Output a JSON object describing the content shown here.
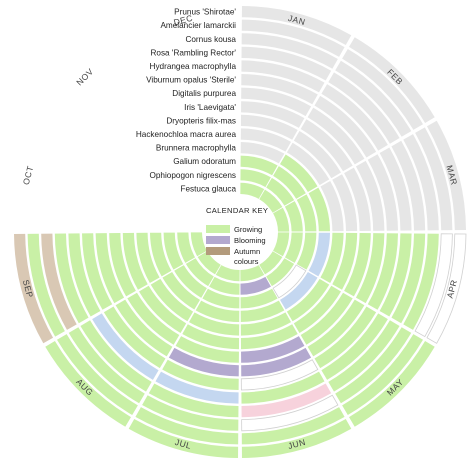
{
  "chart_data": {
    "type": "radial-calendar",
    "months": [
      "JAN",
      "FEB",
      "MAR",
      "APR",
      "MAY",
      "JUN",
      "JUL",
      "AUG",
      "SEP",
      "OCT",
      "NOV",
      "DEC"
    ],
    "key": {
      "title": "CALENDAR KEY",
      "items": [
        {
          "label": "Growing",
          "color": "#c9f0a6"
        },
        {
          "label": "Blooming",
          "color": "#b3a9cf"
        },
        {
          "label": "Autumn\ncolours",
          "color": "#b39b7c"
        }
      ]
    },
    "colors": {
      "dormant": "#e6e6e6",
      "growing": "#c9f0a6",
      "blooming_purple": "#b3a9cf",
      "blooming_white": "#ffffff",
      "blooming_blue": "#c4d7f0",
      "blooming_pink": "#f7d2dc",
      "autumn": "#b39b7c",
      "autumn_light": "#d9c8b4",
      "outline": "#d0d0d0"
    },
    "plants": [
      {
        "name": "Prunus 'Shirotae'",
        "months": [
          "dormant",
          "dormant",
          "dormant",
          "blooming_white",
          "growing",
          "growing",
          "growing",
          "growing",
          "autumn_light",
          "autumn",
          "dormant",
          "dormant"
        ]
      },
      {
        "name": "Amelancier lamarckii",
        "months": [
          "dormant",
          "dormant",
          "dormant",
          "blooming_white",
          "growing",
          "growing",
          "growing",
          "growing",
          "growing",
          "autumn",
          "dormant",
          "dormant"
        ]
      },
      {
        "name": "Cornus kousa",
        "months": [
          "dormant",
          "dormant",
          "dormant",
          "growing",
          "growing",
          "blooming_white",
          "growing",
          "growing",
          "autumn_light",
          "autumn",
          "dormant",
          "dormant"
        ]
      },
      {
        "name": "Rosa 'Rambling Rector'",
        "months": [
          "dormant",
          "dormant",
          "dormant",
          "growing",
          "growing",
          "blooming_pink",
          "growing",
          "growing",
          "growing",
          "dormant",
          "dormant",
          "dormant"
        ]
      },
      {
        "name": "Hydrangea macrophylla",
        "months": [
          "dormant",
          "dormant",
          "dormant",
          "growing",
          "growing",
          "growing",
          "blooming_blue",
          "blooming_blue",
          "growing",
          "dormant",
          "autumn",
          "dormant"
        ]
      },
      {
        "name": "Viburnum opalus 'Sterile'",
        "months": [
          "dormant",
          "dormant",
          "dormant",
          "growing",
          "growing",
          "blooming_white",
          "growing",
          "growing",
          "growing",
          "autumn",
          "dormant",
          "dormant"
        ]
      },
      {
        "name": "Digitalis purpurea",
        "months": [
          "dormant",
          "dormant",
          "dormant",
          "growing",
          "growing",
          "blooming_purple",
          "blooming_purple",
          "growing",
          "growing",
          "growing",
          "dormant",
          "dormant"
        ]
      },
      {
        "name": "Iris 'Laevigata'",
        "months": [
          "dormant",
          "dormant",
          "dormant",
          "growing",
          "growing",
          "blooming_purple",
          "growing",
          "growing",
          "growing",
          "dormant",
          "dormant",
          "dormant"
        ]
      },
      {
        "name": "Dryopteris filix-mas",
        "months": [
          "dormant",
          "dormant",
          "dormant",
          "growing",
          "growing",
          "growing",
          "growing",
          "growing",
          "growing",
          "autumn_light",
          "autumn",
          "dormant"
        ]
      },
      {
        "name": "Hackenochloa macra aurea",
        "months": [
          "dormant",
          "dormant",
          "dormant",
          "growing",
          "growing",
          "growing",
          "growing",
          "growing",
          "growing",
          "autumn_light",
          "autumn",
          "dormant"
        ]
      },
      {
        "name": "Brunnera macrophylla",
        "months": [
          "dormant",
          "growing",
          "growing",
          "blooming_blue",
          "blooming_blue",
          "growing",
          "growing",
          "growing",
          "growing",
          "growing",
          "dormant",
          "dormant"
        ]
      },
      {
        "name": "Galium odoratum",
        "months": [
          "growing",
          "growing",
          "growing",
          "growing",
          "blooming_white",
          "growing",
          "growing",
          "growing",
          "growing",
          "growing",
          "growing",
          "growing"
        ]
      },
      {
        "name": "Ophiopogon nigrescens",
        "months": [
          "growing",
          "growing",
          "growing",
          "growing",
          "growing",
          "blooming_purple",
          "growing",
          "growing",
          "growing",
          "growing",
          "growing",
          "growing"
        ]
      },
      {
        "name": "Festuca glauca",
        "months": [
          "growing",
          "growing",
          "growing",
          "growing",
          "growing",
          "growing",
          "growing",
          "growing",
          "growing",
          "growing",
          "growing",
          "growing"
        ]
      }
    ]
  }
}
